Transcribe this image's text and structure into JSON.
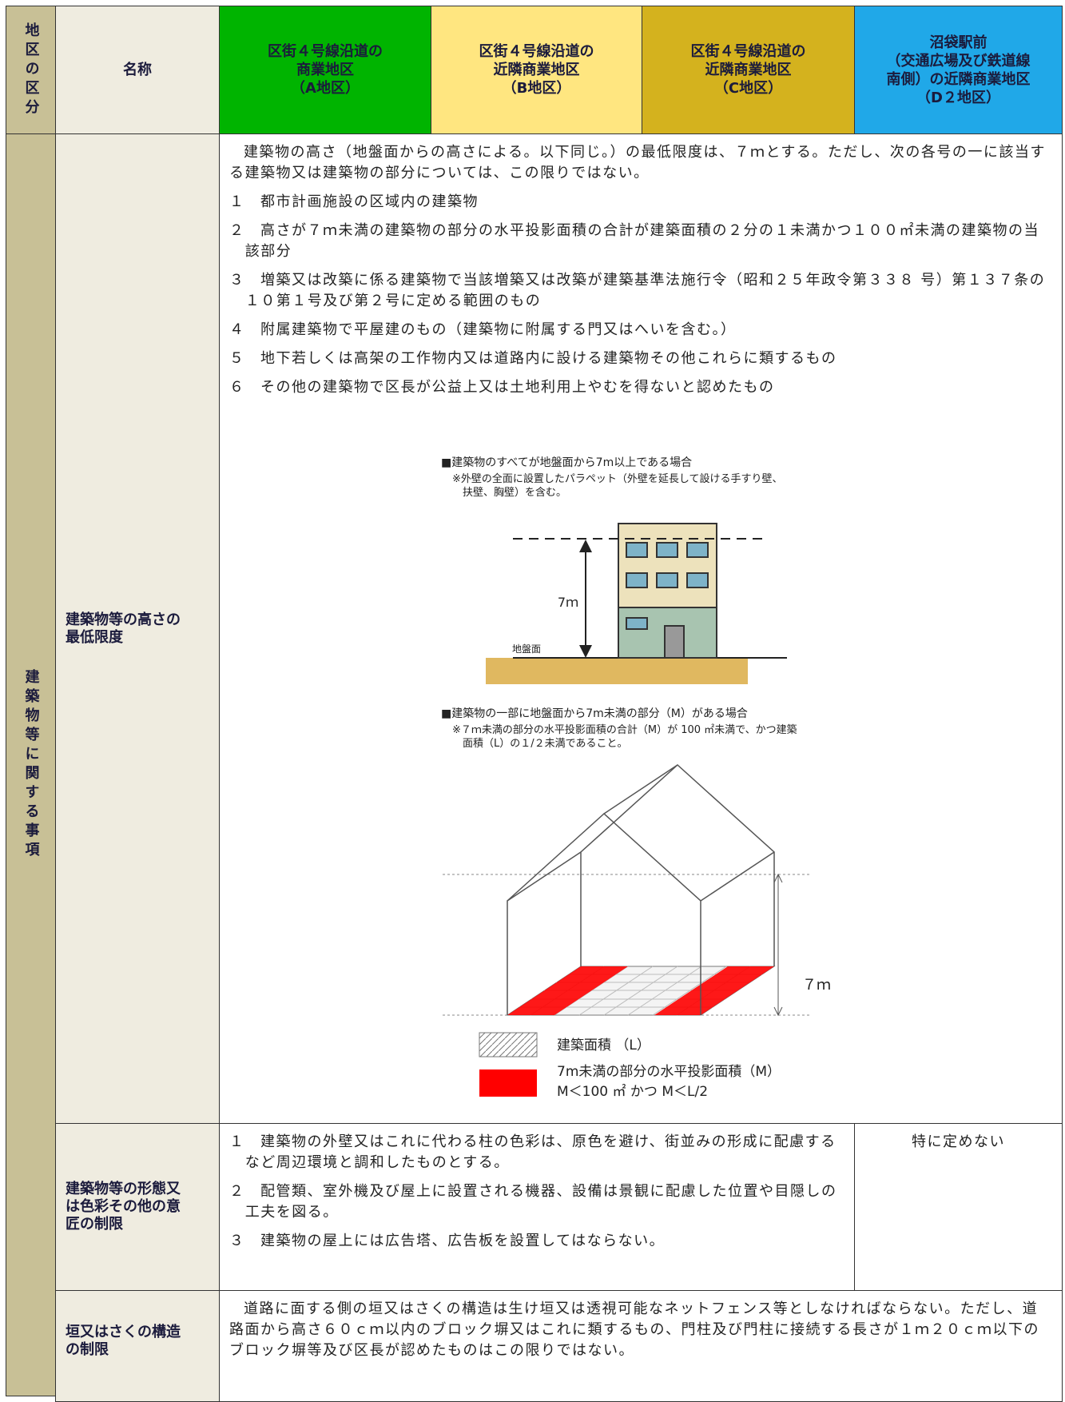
{
  "header": {
    "district_label": "地区の区分",
    "name_label": "名称",
    "districts": [
      "区街４号線沿道の\n商業地区\n（A地区）",
      "区街４号線沿道の\n近隣商業地区\n（B地区）",
      "区街４号線沿道の\n近隣商業地区\n（C地区）",
      "沼袋駅前\n（交通広場及び鉄道線\n南側）の近隣商業地区\n（D２地区）"
    ]
  },
  "category": "建築物等に関する事項",
  "height_row": {
    "label": "建築物等の高さの\n最低限度",
    "intro": "建築物の高さ（地盤面からの高さによる。以下同じ。）の最低限度は、７ｍとする。ただし、次の各号の一に該当する建築物又は建築物の部分については、この限りではない。",
    "items": [
      "１　都市計画施設の区域内の建築物",
      "２　高さが７ｍ未満の建築物の部分の水平投影面積の合計が建築面積の２分の１未満かつ１００㎡未満の建築物の当該部分",
      "３　増築又は改築に係る建築物で当該増築又は改築が建築基準法施行令（昭和２５年政令第３３８ 号）第１３７条の１０第１号及び第２号に定める範囲のもの",
      "４　附属建築物で平屋建のもの（建築物に附属する門又はへいを含む。）",
      "５　地下若しくは高架の工作物内又は道路内に設ける建築物その他これらに類するもの",
      "６　その他の建築物で区長が公益上又は土地利用上やむを得ないと認めたもの"
    ],
    "figure1": {
      "title": "■建築物のすべてが地盤面から7m以上である場合",
      "note": "※外壁の全面に設置したパラペット（外壁を延長して設ける手すり壁、扶壁、胸壁）を含む。",
      "height": "7ｍ",
      "ground": "地盤面"
    },
    "figure2": {
      "title": "■建築物の一部に地盤面から7m未満の部分（M）がある場合",
      "note": "※７ｍ未満の部分の水平投影面積の合計（M）が 100 ㎡未満で、かつ建築面積（L）の１/２未満であること。",
      "height": "７ｍ",
      "legend_l": "建築面積 （L）",
      "legend_m": "7m未満の部分の水平投影面積（M）",
      "legend_m_rule": "M＜100 ㎡ かつ M＜L/2"
    }
  },
  "form_row": {
    "label": "建築物等の形態又\nは色彩その他の意\n匠の制限",
    "items": [
      "１　建築物の外壁又はこれに代わる柱の色彩は、原色を避け、街並みの形成に配慮するなど周辺環境と調和したものとする。",
      "２　配管類、室外機及び屋上に設置される機器、設備は景観に配慮した位置や目隠しの工夫を図る。",
      "３　建築物の屋上には広告塔、広告板を設置してはならない。"
    ],
    "d2": "特に定めない"
  },
  "fence_row": {
    "label": "垣又はさくの構造\nの制限",
    "text": "道路に面する側の垣又はさくの構造は生け垣又は透視可能なネットフェンス等としなければならない。ただし、道路面から高さ６０ｃｍ以内のブロック塀又はこれに類するもの、門柱及び門柱に接続する長さが１ｍ２０ｃｍ以下のブロック塀等及び区長が認めたものはこの限りではない。"
  }
}
